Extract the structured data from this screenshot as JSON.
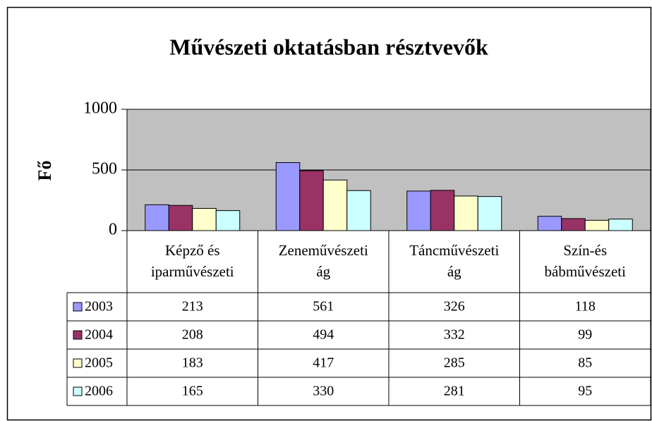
{
  "chart_data": {
    "type": "bar",
    "title": "Művészeti oktatásban résztvevők",
    "y_label": "Fő",
    "categories": [
      "Képző és iparművészeti",
      "Zeneművészeti ág",
      "Táncművészeti ág",
      "Szín-és bábművészeti"
    ],
    "series": [
      {
        "name": "2003",
        "color": "#9999ff",
        "values": [
          213,
          561,
          326,
          118
        ]
      },
      {
        "name": "2004",
        "color": "#993366",
        "values": [
          208,
          494,
          332,
          99
        ]
      },
      {
        "name": "2005",
        "color": "#ffffcc",
        "values": [
          183,
          417,
          285,
          85
        ]
      },
      {
        "name": "2006",
        "color": "#ccffff",
        "values": [
          165,
          330,
          281,
          95
        ]
      }
    ],
    "ylim": [
      0,
      1000
    ],
    "yticks": [
      0,
      500,
      1000
    ],
    "plot_background": "#c0c0c0",
    "grid": true,
    "data_table": true
  }
}
